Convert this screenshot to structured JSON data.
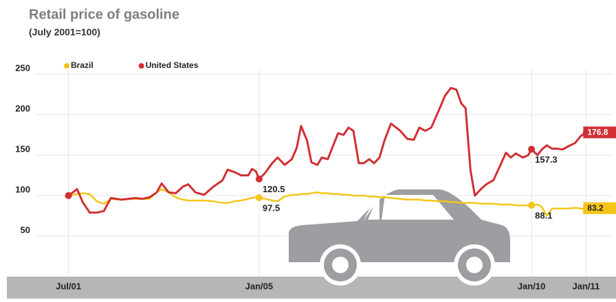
{
  "chart_data": {
    "type": "line",
    "title": "Retail price of gasoline",
    "subtitle": "(July 2001=100)",
    "x": [
      2001.5,
      2001.66,
      2001.76,
      2001.89,
      2002.02,
      2002.15,
      2002.28,
      2002.47,
      2002.73,
      2002.86,
      2002.99,
      2003.12,
      2003.21,
      2003.34,
      2003.47,
      2003.6,
      2003.7,
      2003.83,
      2003.99,
      2004.16,
      2004.33,
      2004.42,
      2004.55,
      2004.67,
      2004.8,
      2004.87,
      2004.94,
      2005.0,
      2005.11,
      2005.24,
      2005.34,
      2005.47,
      2005.6,
      2005.69,
      2005.77,
      2005.88,
      2005.96,
      2006.07,
      2006.15,
      2006.26,
      2006.36,
      2006.45,
      2006.55,
      2006.64,
      2006.73,
      2006.83,
      2006.92,
      2007.02,
      2007.11,
      2007.21,
      2007.3,
      2007.42,
      2007.59,
      2007.72,
      2007.84,
      2007.94,
      2008.05,
      2008.16,
      2008.29,
      2008.41,
      2008.52,
      2008.62,
      2008.71,
      2008.79,
      2008.88,
      2008.96,
      2009.07,
      2009.17,
      2009.3,
      2009.43,
      2009.53,
      2009.62,
      2009.71,
      2009.84,
      2009.94,
      2010.0,
      2010.11,
      2010.19,
      2010.28,
      2010.38,
      2010.47,
      2010.57,
      2010.68,
      2010.8,
      2010.91,
      2011.0
    ],
    "series": [
      {
        "name": "Brazil",
        "color": "#f5c518",
        "values": [
          100,
          102,
          103,
          102,
          93,
          90,
          96,
          95,
          96,
          96,
          96,
          104,
          108,
          104,
          98,
          95,
          94,
          94,
          94,
          93,
          91,
          91,
          93,
          94,
          96,
          97,
          98,
          97.5,
          96,
          94,
          93,
          99,
          101,
          101,
          102,
          102,
          103,
          104,
          103,
          103,
          102,
          102,
          101,
          101,
          100,
          100,
          100,
          99,
          99,
          98,
          98,
          97,
          96,
          95,
          95,
          95,
          94,
          94,
          93,
          93,
          92,
          92,
          91,
          91,
          91,
          91,
          90,
          90,
          90,
          89,
          89,
          89,
          88,
          88,
          88,
          88.1,
          89,
          86,
          75,
          84,
          84,
          84,
          84,
          85,
          84,
          83.2
        ]
      },
      {
        "name": "United States",
        "color": "#d12f34",
        "values": [
          100,
          108,
          92,
          79,
          79,
          81,
          97,
          95,
          97,
          96,
          98,
          104,
          115,
          104,
          103,
          111,
          114,
          104,
          101,
          111,
          119,
          132,
          129,
          125,
          125,
          133,
          130,
          120.5,
          128,
          140,
          147,
          138,
          145,
          159,
          186,
          168,
          141,
          138,
          147,
          145,
          162,
          177,
          175,
          184,
          180,
          140,
          140,
          145,
          140,
          147,
          168,
          189,
          180,
          170,
          169,
          184,
          180,
          184,
          204,
          223,
          233,
          231,
          214,
          208,
          131,
          100,
          108,
          114,
          119,
          138,
          153,
          147,
          152,
          147,
          150,
          157.3,
          150,
          157,
          162,
          158,
          158,
          157,
          161,
          165,
          174,
          176.8
        ]
      }
    ],
    "xlim": [
      2000.9,
      2011.5
    ],
    "xticks": [
      {
        "value": 2001.5,
        "label": "Jul/01"
      },
      {
        "value": 2005,
        "label": "Jan/05"
      },
      {
        "value": 2010,
        "label": "Jan/10"
      },
      {
        "value": 2011,
        "label": "Jan/11"
      }
    ],
    "ylim": [
      0,
      250
    ],
    "yticks": [
      50,
      100,
      150,
      200,
      250
    ],
    "grid": true,
    "legend": "top-left"
  }
}
